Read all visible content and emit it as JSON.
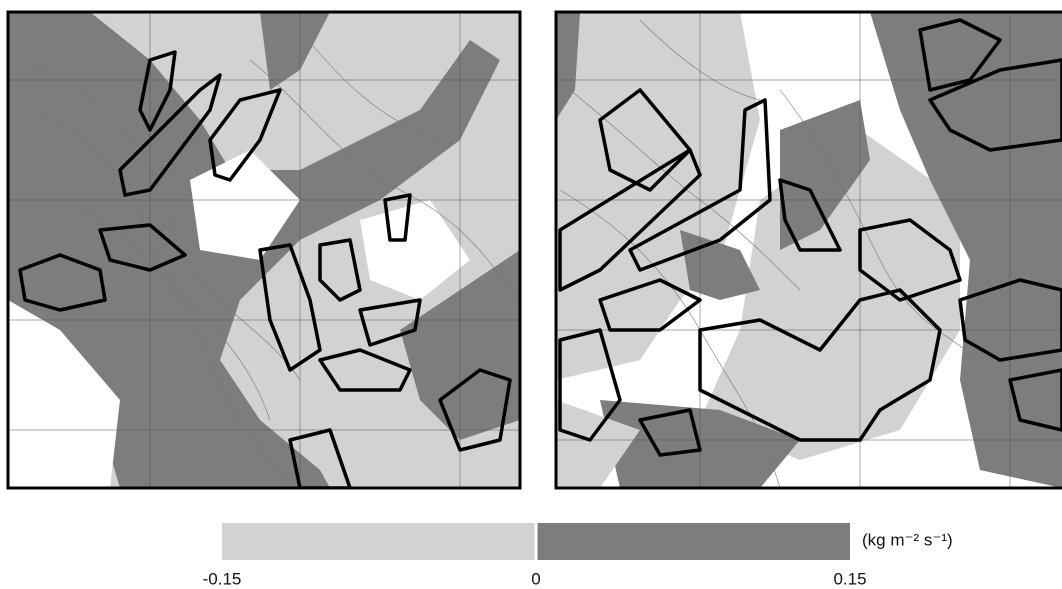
{
  "colorbar": {
    "label": "(kg m⁻² s⁻¹)",
    "lim": [
      -0.15,
      0.15
    ],
    "ticks": [
      -0.15,
      0,
      0.15
    ],
    "colors": [
      "#d2d2d2",
      "#7d7d7d"
    ]
  }
}
